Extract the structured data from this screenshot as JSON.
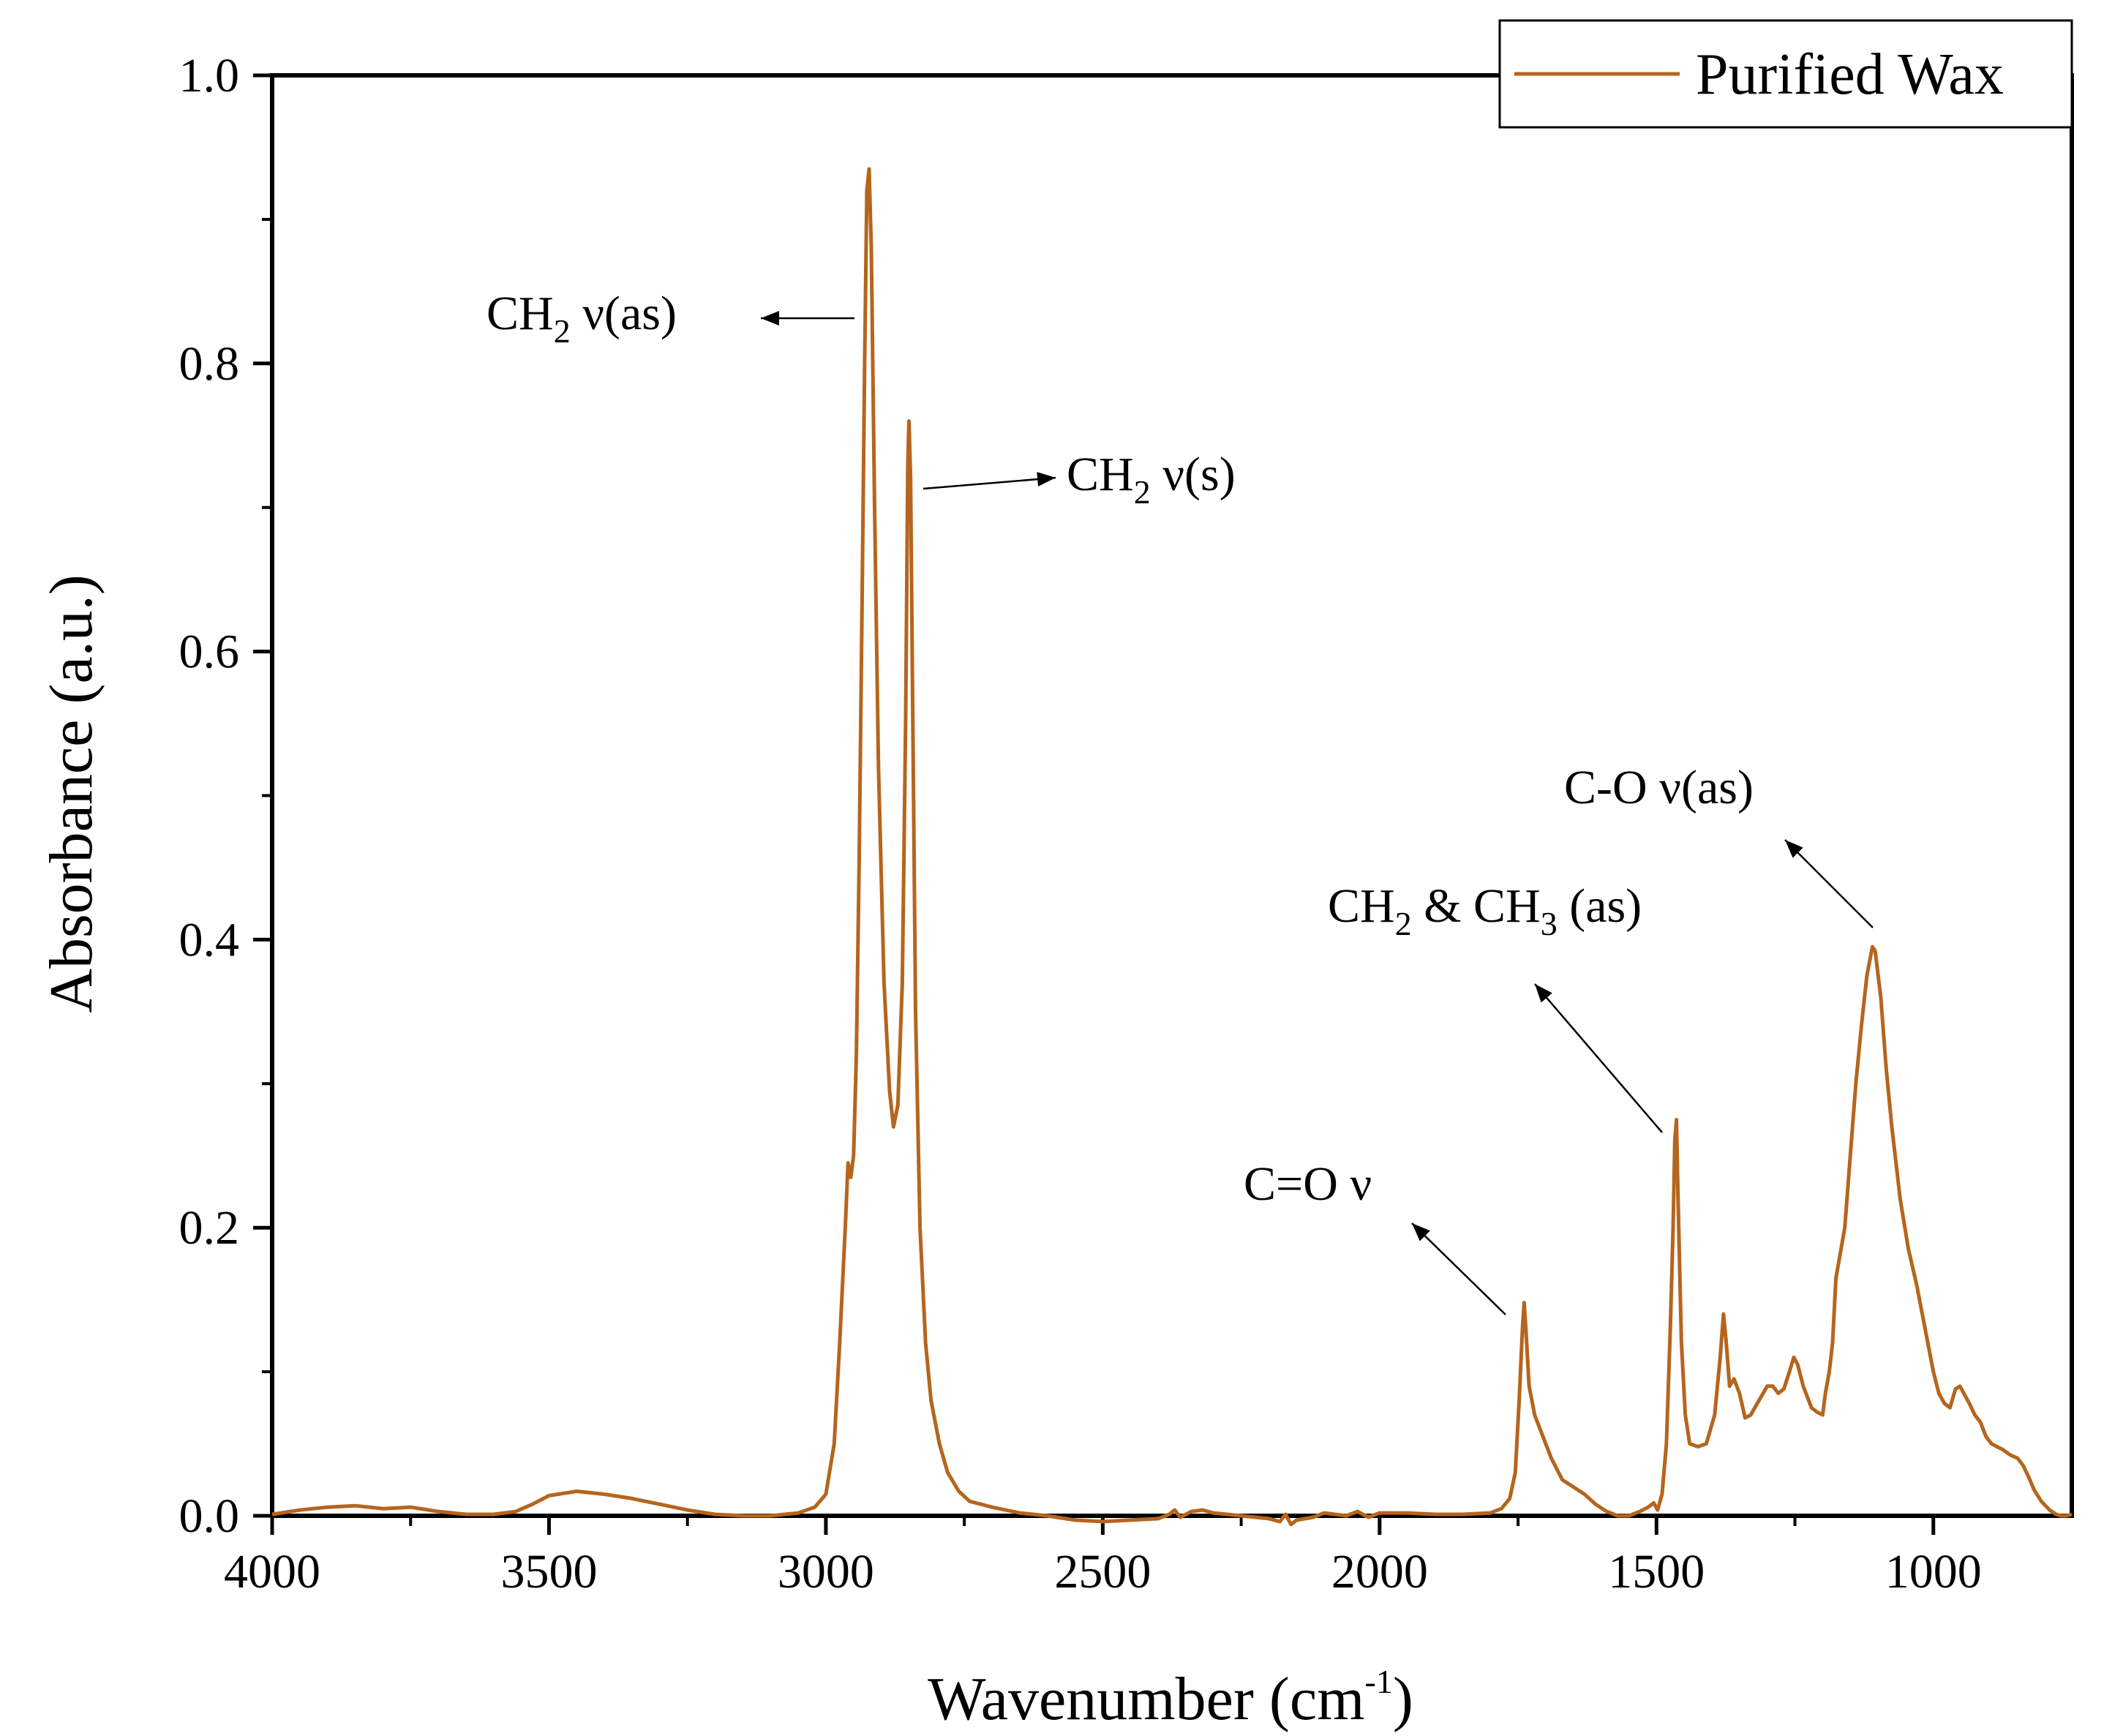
{
  "chart_data": {
    "type": "line",
    "xlabel": "Wavenumber (cm",
    "xlabel_sup": "-1",
    "xlabel_close": ")",
    "ylabel": "Absorbance (a.u.)",
    "xlim": [
      4000,
      750
    ],
    "ylim": [
      0,
      1.0
    ],
    "x_ticks": [
      4000,
      3500,
      3000,
      2500,
      2000,
      1500,
      1000
    ],
    "x_tick_labels": [
      "4000",
      "3500",
      "3000",
      "2500",
      "2000",
      "1500",
      "1000"
    ],
    "y_ticks": [
      0.0,
      0.2,
      0.4,
      0.6,
      0.8,
      1.0
    ],
    "y_tick_labels": [
      "0.0",
      "0.2",
      "0.4",
      "0.6",
      "0.8",
      "1.0"
    ],
    "grid": false,
    "legend": {
      "position": "top-right",
      "entries": [
        "Purified Wax"
      ]
    },
    "series": [
      {
        "name": "Purified Wax",
        "color": "#b5651d",
        "points": [
          [
            4000,
            0.001
          ],
          [
            3950,
            0.004
          ],
          [
            3900,
            0.006
          ],
          [
            3850,
            0.007
          ],
          [
            3800,
            0.005
          ],
          [
            3750,
            0.006
          ],
          [
            3700,
            0.003
          ],
          [
            3650,
            0.001
          ],
          [
            3600,
            0.001
          ],
          [
            3560,
            0.003
          ],
          [
            3530,
            0.008
          ],
          [
            3500,
            0.014
          ],
          [
            3450,
            0.017
          ],
          [
            3400,
            0.015
          ],
          [
            3350,
            0.012
          ],
          [
            3300,
            0.008
          ],
          [
            3250,
            0.004
          ],
          [
            3200,
            0.001
          ],
          [
            3150,
            0.0
          ],
          [
            3100,
            0.0
          ],
          [
            3050,
            0.002
          ],
          [
            3020,
            0.006
          ],
          [
            3000,
            0.015
          ],
          [
            2985,
            0.05
          ],
          [
            2975,
            0.12
          ],
          [
            2965,
            0.2
          ],
          [
            2960,
            0.245
          ],
          [
            2955,
            0.235
          ],
          [
            2950,
            0.25
          ],
          [
            2945,
            0.32
          ],
          [
            2940,
            0.45
          ],
          [
            2935,
            0.62
          ],
          [
            2930,
            0.8
          ],
          [
            2926,
            0.92
          ],
          [
            2922,
            0.935
          ],
          [
            2918,
            0.88
          ],
          [
            2912,
            0.7
          ],
          [
            2905,
            0.52
          ],
          [
            2895,
            0.37
          ],
          [
            2885,
            0.295
          ],
          [
            2878,
            0.27
          ],
          [
            2870,
            0.285
          ],
          [
            2862,
            0.37
          ],
          [
            2856,
            0.55
          ],
          [
            2852,
            0.73
          ],
          [
            2850,
            0.76
          ],
          [
            2847,
            0.72
          ],
          [
            2843,
            0.55
          ],
          [
            2838,
            0.35
          ],
          [
            2830,
            0.2
          ],
          [
            2820,
            0.12
          ],
          [
            2810,
            0.08
          ],
          [
            2795,
            0.05
          ],
          [
            2780,
            0.03
          ],
          [
            2760,
            0.017
          ],
          [
            2740,
            0.01
          ],
          [
            2720,
            0.008
          ],
          [
            2700,
            0.006
          ],
          [
            2650,
            0.002
          ],
          [
            2600,
            0.0
          ],
          [
            2550,
            -0.003
          ],
          [
            2500,
            -0.004
          ],
          [
            2450,
            -0.003
          ],
          [
            2400,
            -0.002
          ],
          [
            2380,
            0.001
          ],
          [
            2370,
            0.004
          ],
          [
            2360,
            -0.001
          ],
          [
            2340,
            0.003
          ],
          [
            2320,
            0.004
          ],
          [
            2300,
            0.002
          ],
          [
            2250,
            0.0
          ],
          [
            2200,
            -0.002
          ],
          [
            2180,
            -0.004
          ],
          [
            2170,
            0.001
          ],
          [
            2160,
            -0.006
          ],
          [
            2150,
            -0.003
          ],
          [
            2120,
            -0.001
          ],
          [
            2100,
            0.002
          ],
          [
            2060,
            0.0
          ],
          [
            2040,
            0.003
          ],
          [
            2020,
            -0.001
          ],
          [
            2000,
            0.002
          ],
          [
            1950,
            0.002
          ],
          [
            1900,
            0.001
          ],
          [
            1850,
            0.001
          ],
          [
            1800,
            0.002
          ],
          [
            1780,
            0.005
          ],
          [
            1765,
            0.012
          ],
          [
            1755,
            0.03
          ],
          [
            1748,
            0.08
          ],
          [
            1742,
            0.13
          ],
          [
            1739,
            0.148
          ],
          [
            1736,
            0.13
          ],
          [
            1730,
            0.09
          ],
          [
            1720,
            0.07
          ],
          [
            1705,
            0.055
          ],
          [
            1690,
            0.04
          ],
          [
            1670,
            0.025
          ],
          [
            1650,
            0.02
          ],
          [
            1630,
            0.015
          ],
          [
            1610,
            0.008
          ],
          [
            1590,
            0.003
          ],
          [
            1570,
            0.0
          ],
          [
            1550,
            0.0
          ],
          [
            1530,
            0.003
          ],
          [
            1515,
            0.006
          ],
          [
            1505,
            0.009
          ],
          [
            1498,
            0.004
          ],
          [
            1490,
            0.015
          ],
          [
            1482,
            0.05
          ],
          [
            1475,
            0.13
          ],
          [
            1470,
            0.2
          ],
          [
            1467,
            0.26
          ],
          [
            1464,
            0.275
          ],
          [
            1461,
            0.22
          ],
          [
            1455,
            0.12
          ],
          [
            1448,
            0.07
          ],
          [
            1440,
            0.05
          ],
          [
            1425,
            0.048
          ],
          [
            1410,
            0.05
          ],
          [
            1395,
            0.07
          ],
          [
            1385,
            0.11
          ],
          [
            1379,
            0.14
          ],
          [
            1374,
            0.12
          ],
          [
            1368,
            0.09
          ],
          [
            1360,
            0.095
          ],
          [
            1350,
            0.085
          ],
          [
            1340,
            0.068
          ],
          [
            1330,
            0.07
          ],
          [
            1315,
            0.08
          ],
          [
            1300,
            0.09
          ],
          [
            1290,
            0.09
          ],
          [
            1280,
            0.085
          ],
          [
            1270,
            0.088
          ],
          [
            1260,
            0.1
          ],
          [
            1252,
            0.11
          ],
          [
            1245,
            0.105
          ],
          [
            1235,
            0.09
          ],
          [
            1220,
            0.075
          ],
          [
            1210,
            0.072
          ],
          [
            1200,
            0.07
          ],
          [
            1195,
            0.085
          ],
          [
            1188,
            0.1
          ],
          [
            1182,
            0.12
          ],
          [
            1176,
            0.165
          ],
          [
            1170,
            0.178
          ],
          [
            1160,
            0.2
          ],
          [
            1150,
            0.25
          ],
          [
            1140,
            0.3
          ],
          [
            1130,
            0.34
          ],
          [
            1120,
            0.375
          ],
          [
            1110,
            0.395
          ],
          [
            1105,
            0.392
          ],
          [
            1095,
            0.36
          ],
          [
            1085,
            0.31
          ],
          [
            1075,
            0.27
          ],
          [
            1060,
            0.22
          ],
          [
            1045,
            0.185
          ],
          [
            1030,
            0.16
          ],
          [
            1015,
            0.13
          ],
          [
            1000,
            0.1
          ],
          [
            990,
            0.085
          ],
          [
            980,
            0.078
          ],
          [
            970,
            0.075
          ],
          [
            960,
            0.088
          ],
          [
            952,
            0.09
          ],
          [
            945,
            0.085
          ],
          [
            935,
            0.078
          ],
          [
            925,
            0.07
          ],
          [
            915,
            0.065
          ],
          [
            905,
            0.055
          ],
          [
            895,
            0.05
          ],
          [
            885,
            0.048
          ],
          [
            875,
            0.046
          ],
          [
            860,
            0.042
          ],
          [
            848,
            0.04
          ],
          [
            838,
            0.035
          ],
          [
            828,
            0.027
          ],
          [
            818,
            0.018
          ],
          [
            805,
            0.01
          ],
          [
            790,
            0.004
          ],
          [
            778,
            0.001
          ],
          [
            770,
            0.0
          ],
          [
            760,
            0.0
          ],
          [
            750,
            0.001
          ]
        ]
      }
    ],
    "annotations": [
      {
        "id": "ch2-as",
        "base": "CH",
        "sub": "2",
        "rest": " ν(as)"
      },
      {
        "id": "ch2-s",
        "base": "CH",
        "sub": "2",
        "rest": " ν(s)"
      },
      {
        "id": "co-as",
        "text": "C-O ν(as)"
      },
      {
        "id": "ch2ch3",
        "base": "CH",
        "sub": "2",
        "mid": " & CH",
        "sub2": "3",
        "rest": " (as)"
      },
      {
        "id": "c-o-double",
        "text": "C=O ν"
      }
    ]
  }
}
